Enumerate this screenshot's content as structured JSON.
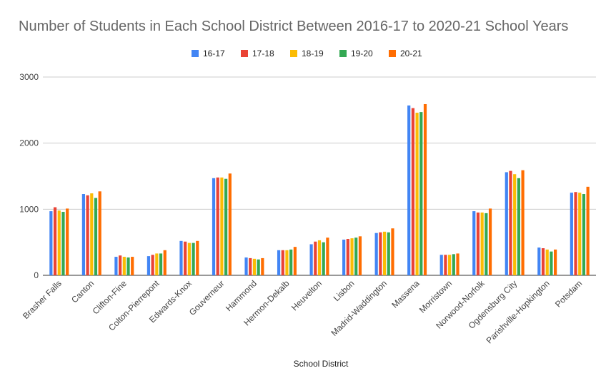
{
  "chart_data": {
    "type": "bar",
    "title": "Number of Students in Each School District Between 2016-17 to 2020-21 School Years",
    "xlabel": "School District",
    "ylabel": "",
    "ylim": [
      0,
      3000
    ],
    "yticks": [
      0,
      1000,
      2000,
      3000
    ],
    "grid": true,
    "legend_position": "top",
    "categories": [
      "Brasher Falls",
      "Canton",
      "Clifton-Fine",
      "Colton-Pierrepont",
      "Edwards-Knox",
      "Gouverneur",
      "Hammond",
      "Hermon-Dekalb",
      "Heuvelton",
      "Lisbon",
      "Madrid-Waddington",
      "Massena",
      "Morristown",
      "Norwood-Norfolk",
      "Ogdensburg City",
      "Parishville-Hopkington",
      "Potsdam"
    ],
    "series": [
      {
        "name": "16-17",
        "color": "#4285f4",
        "values": [
          970,
          1230,
          280,
          290,
          520,
          1470,
          270,
          380,
          470,
          540,
          640,
          2570,
          310,
          970,
          1560,
          420,
          1250
        ]
      },
      {
        "name": "17-18",
        "color": "#ea4335",
        "values": [
          1030,
          1210,
          300,
          310,
          510,
          1480,
          260,
          380,
          510,
          550,
          650,
          2530,
          310,
          950,
          1580,
          410,
          1260
        ]
      },
      {
        "name": "18-19",
        "color": "#fbbc04",
        "values": [
          980,
          1240,
          280,
          330,
          490,
          1480,
          250,
          380,
          530,
          560,
          660,
          2460,
          310,
          950,
          1530,
          390,
          1250
        ]
      },
      {
        "name": "19-20",
        "color": "#34a853",
        "values": [
          960,
          1170,
          270,
          330,
          490,
          1460,
          240,
          390,
          500,
          570,
          650,
          2470,
          320,
          940,
          1470,
          360,
          1230
        ]
      },
      {
        "name": "20-21",
        "color": "#ff6d01",
        "values": [
          1010,
          1270,
          280,
          380,
          520,
          1540,
          260,
          430,
          570,
          590,
          710,
          2590,
          330,
          1010,
          1590,
          390,
          1340
        ]
      }
    ]
  }
}
